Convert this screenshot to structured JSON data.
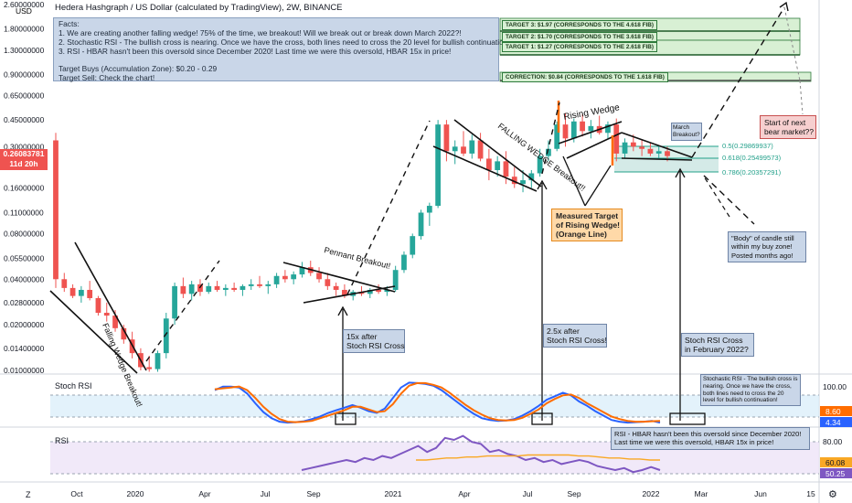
{
  "header": {
    "title": "Hedera Hashgraph / US Dollar (calculated by TradingView), 2W, BINANCE",
    "currency": "USD"
  },
  "facts": {
    "heading": "Facts:",
    "line1": "1. We are creating another falling wedge! 75% of the time, we breakout! Will we break out or break down March 2022?!",
    "line2": "2. Stochastic RSI - The bullish cross is nearing. Once we have the cross, both lines need to cross the 20 level for bullish continuation!",
    "line3": "3. RSI - HBAR hasn't been this oversold since December 2020! Last time we were this oversold, HBAR 15x in price!",
    "buys": "Target Buys (Accumulation Zone): $0.20 - 0.29",
    "sell": "Target Sell: Check the chart!"
  },
  "price_tag": {
    "price": "0.26083781",
    "countdown": "11d 20h",
    "color": "#ef5350"
  },
  "targets": {
    "t3": "TARGET 3: $1.97 (CORRESPONDS TO THE 4.618 FIB)",
    "t2": "TARGET 2: $1.70 (CORRESPONDS TO THE 3.618 FIB)",
    "t1": "TARGET 1: $1.27 (CORRESPONDS TO THE 2.618 FIB)",
    "correction": "CORRECTION: $0.84 (CORRESPONDS TO THE 1.618 FIB)"
  },
  "fib_levels": {
    "f05": "0.5(0.29869937)",
    "f0618": "0.618(0.25499573)",
    "f0786": "0.786(0.20357291)"
  },
  "annotations": {
    "falling_wedge_left": "Falling Wedge Breakout!",
    "pennant": "Pennant Breakout!",
    "falling_wedge_mid": "FALLING WEDGE Breakout!!",
    "rising_wedge": "Rising Wedge",
    "measured_target_1": "Measured Target",
    "measured_target_2": "of Rising Wedge!",
    "measured_target_3": "(Orange Line)",
    "march_1": "March",
    "march_2": "Breakout?",
    "bear_1": "Start of next",
    "bear_2": "bear market??",
    "body_1": "\"Body\" of candle still",
    "body_2": "within my buy zone!",
    "body_3": "Posted months ago!",
    "x15_1": "15x after",
    "x15_2": "Stoch RSI Cross",
    "x25_1": "2.5x after",
    "x25_2": "Stoch RSI Cross!",
    "feb_1": "Stoch RSI Cross",
    "feb_2": "in February 2022?",
    "stoch_note_1": "Stochastic RSI - The bullish cross is",
    "stoch_note_2": "nearing. Once we have the cross,",
    "stoch_note_3": "both lines need to cross the 20",
    "stoch_note_4": "level for bullish continuation!",
    "rsi_note_1": "RSI - HBAR hasn't been this oversold since December 2020!",
    "rsi_note_2": "Last time we were this oversold, HBAR 15x in price!"
  },
  "panels": {
    "stoch_label": "Stoch RSI",
    "stoch_top": "100.00",
    "stoch_v1": "8.60",
    "stoch_v2": "4.34",
    "rsi_label": "RSI",
    "rsi_top": "80.00",
    "rsi_v1": "60.08",
    "rsi_v2": "50.25"
  },
  "colors": {
    "up": "#26a69a",
    "down": "#ef5350",
    "stoch_k": "#2962ff",
    "stoch_d": "#ff6d00",
    "rsi": "#7e57c2",
    "rsi_ma": "#f9a825",
    "fib": "#22a08a",
    "orange_line": "#ff6d00"
  },
  "chart_data": {
    "type": "candlestick",
    "scale": "log",
    "y_ticks": [
      "2.60000000",
      "1.80000000",
      "1.30000000",
      "0.90000000",
      "0.65000000",
      "0.45000000",
      "0.30000000",
      "0.16000000",
      "0.11000000",
      "0.08000000",
      "0.05500000",
      "0.04000000",
      "0.02800000",
      "0.02000000",
      "0.01400000",
      "0.01000000"
    ],
    "x_ticks": [
      "Oct",
      "2020",
      "Apr",
      "Jul",
      "Sep",
      "2021",
      "Apr",
      "Jul",
      "Sep",
      "2022",
      "Mar",
      "Jun",
      "15"
    ],
    "candles": [
      {
        "o": 0.33,
        "h": 0.37,
        "l": 0.035,
        "c": 0.04
      },
      {
        "o": 0.04,
        "h": 0.044,
        "l": 0.033,
        "c": 0.035
      },
      {
        "o": 0.035,
        "h": 0.037,
        "l": 0.03,
        "c": 0.031
      },
      {
        "o": 0.031,
        "h": 0.036,
        "l": 0.028,
        "c": 0.034
      },
      {
        "o": 0.034,
        "h": 0.039,
        "l": 0.029,
        "c": 0.03
      },
      {
        "o": 0.03,
        "h": 0.031,
        "l": 0.023,
        "c": 0.024
      },
      {
        "o": 0.024,
        "h": 0.028,
        "l": 0.021,
        "c": 0.023
      },
      {
        "o": 0.023,
        "h": 0.025,
        "l": 0.018,
        "c": 0.019
      },
      {
        "o": 0.019,
        "h": 0.02,
        "l": 0.015,
        "c": 0.016
      },
      {
        "o": 0.016,
        "h": 0.018,
        "l": 0.012,
        "c": 0.013
      },
      {
        "o": 0.013,
        "h": 0.014,
        "l": 0.01,
        "c": 0.0105
      },
      {
        "o": 0.0105,
        "h": 0.0125,
        "l": 0.0098,
        "c": 0.0102
      },
      {
        "o": 0.0102,
        "h": 0.0135,
        "l": 0.0098,
        "c": 0.013
      },
      {
        "o": 0.013,
        "h": 0.024,
        "l": 0.012,
        "c": 0.022
      },
      {
        "o": 0.022,
        "h": 0.038,
        "l": 0.02,
        "c": 0.036
      },
      {
        "o": 0.036,
        "h": 0.041,
        "l": 0.03,
        "c": 0.032
      },
      {
        "o": 0.032,
        "h": 0.039,
        "l": 0.029,
        "c": 0.037
      },
      {
        "o": 0.037,
        "h": 0.04,
        "l": 0.031,
        "c": 0.033
      },
      {
        "o": 0.033,
        "h": 0.038,
        "l": 0.032,
        "c": 0.036
      },
      {
        "o": 0.036,
        "h": 0.039,
        "l": 0.033,
        "c": 0.034
      },
      {
        "o": 0.034,
        "h": 0.037,
        "l": 0.031,
        "c": 0.035
      },
      {
        "o": 0.035,
        "h": 0.038,
        "l": 0.033,
        "c": 0.034
      },
      {
        "o": 0.034,
        "h": 0.037,
        "l": 0.031,
        "c": 0.036
      },
      {
        "o": 0.036,
        "h": 0.04,
        "l": 0.034,
        "c": 0.037
      },
      {
        "o": 0.037,
        "h": 0.042,
        "l": 0.035,
        "c": 0.036
      },
      {
        "o": 0.036,
        "h": 0.039,
        "l": 0.032,
        "c": 0.037
      },
      {
        "o": 0.037,
        "h": 0.044,
        "l": 0.035,
        "c": 0.042
      },
      {
        "o": 0.042,
        "h": 0.046,
        "l": 0.038,
        "c": 0.04
      },
      {
        "o": 0.04,
        "h": 0.045,
        "l": 0.037,
        "c": 0.043
      },
      {
        "o": 0.043,
        "h": 0.052,
        "l": 0.041,
        "c": 0.048
      },
      {
        "o": 0.048,
        "h": 0.053,
        "l": 0.042,
        "c": 0.044
      },
      {
        "o": 0.044,
        "h": 0.048,
        "l": 0.038,
        "c": 0.04
      },
      {
        "o": 0.04,
        "h": 0.044,
        "l": 0.034,
        "c": 0.036
      },
      {
        "o": 0.036,
        "h": 0.038,
        "l": 0.031,
        "c": 0.034
      },
      {
        "o": 0.034,
        "h": 0.037,
        "l": 0.03,
        "c": 0.031
      },
      {
        "o": 0.031,
        "h": 0.034,
        "l": 0.029,
        "c": 0.033
      },
      {
        "o": 0.033,
        "h": 0.036,
        "l": 0.031,
        "c": 0.032
      },
      {
        "o": 0.032,
        "h": 0.035,
        "l": 0.03,
        "c": 0.034
      },
      {
        "o": 0.034,
        "h": 0.037,
        "l": 0.032,
        "c": 0.033
      },
      {
        "o": 0.033,
        "h": 0.036,
        "l": 0.031,
        "c": 0.034
      },
      {
        "o": 0.034,
        "h": 0.049,
        "l": 0.033,
        "c": 0.046
      },
      {
        "o": 0.046,
        "h": 0.061,
        "l": 0.044,
        "c": 0.058
      },
      {
        "o": 0.058,
        "h": 0.08,
        "l": 0.055,
        "c": 0.077
      },
      {
        "o": 0.077,
        "h": 0.115,
        "l": 0.073,
        "c": 0.11
      },
      {
        "o": 0.11,
        "h": 0.128,
        "l": 0.09,
        "c": 0.122
      },
      {
        "o": 0.122,
        "h": 0.45,
        "l": 0.118,
        "c": 0.42
      },
      {
        "o": 0.42,
        "h": 0.45,
        "l": 0.24,
        "c": 0.28
      },
      {
        "o": 0.28,
        "h": 0.33,
        "l": 0.23,
        "c": 0.3
      },
      {
        "o": 0.3,
        "h": 0.38,
        "l": 0.26,
        "c": 0.27
      },
      {
        "o": 0.27,
        "h": 0.36,
        "l": 0.25,
        "c": 0.33
      },
      {
        "o": 0.33,
        "h": 0.37,
        "l": 0.24,
        "c": 0.25
      },
      {
        "o": 0.25,
        "h": 0.29,
        "l": 0.18,
        "c": 0.21
      },
      {
        "o": 0.21,
        "h": 0.26,
        "l": 0.19,
        "c": 0.24
      },
      {
        "o": 0.24,
        "h": 0.28,
        "l": 0.17,
        "c": 0.19
      },
      {
        "o": 0.19,
        "h": 0.22,
        "l": 0.16,
        "c": 0.17
      },
      {
        "o": 0.17,
        "h": 0.21,
        "l": 0.15,
        "c": 0.18
      },
      {
        "o": 0.18,
        "h": 0.21,
        "l": 0.16,
        "c": 0.2
      },
      {
        "o": 0.2,
        "h": 0.29,
        "l": 0.19,
        "c": 0.26
      },
      {
        "o": 0.26,
        "h": 0.33,
        "l": 0.24,
        "c": 0.29
      },
      {
        "o": 0.29,
        "h": 0.44,
        "l": 0.28,
        "c": 0.42
      },
      {
        "o": 0.42,
        "h": 0.5,
        "l": 0.3,
        "c": 0.34
      },
      {
        "o": 0.34,
        "h": 0.46,
        "l": 0.32,
        "c": 0.44
      },
      {
        "o": 0.44,
        "h": 0.49,
        "l": 0.35,
        "c": 0.38
      },
      {
        "o": 0.38,
        "h": 0.45,
        "l": 0.34,
        "c": 0.41
      },
      {
        "o": 0.41,
        "h": 0.48,
        "l": 0.36,
        "c": 0.37
      },
      {
        "o": 0.37,
        "h": 0.44,
        "l": 0.34,
        "c": 0.42
      },
      {
        "o": 0.42,
        "h": 0.46,
        "l": 0.24,
        "c": 0.27
      },
      {
        "o": 0.27,
        "h": 0.34,
        "l": 0.25,
        "c": 0.32
      },
      {
        "o": 0.32,
        "h": 0.36,
        "l": 0.28,
        "c": 0.3
      },
      {
        "o": 0.3,
        "h": 0.33,
        "l": 0.26,
        "c": 0.29
      },
      {
        "o": 0.29,
        "h": 0.32,
        "l": 0.26,
        "c": 0.27
      },
      {
        "o": 0.27,
        "h": 0.3,
        "l": 0.25,
        "c": 0.28
      },
      {
        "o": 0.28,
        "h": 0.3,
        "l": 0.24,
        "c": 0.26
      }
    ],
    "stoch_k": [
      78,
      86,
      86,
      84,
      70,
      48,
      28,
      14,
      6,
      4,
      5,
      7,
      12,
      18,
      26,
      32,
      38,
      44,
      38,
      30,
      26,
      36,
      60,
      84,
      95,
      94,
      92,
      88,
      78,
      64,
      50,
      36,
      24,
      14,
      10,
      8,
      9,
      12,
      20,
      30,
      42,
      56,
      64,
      72,
      66,
      52,
      42,
      30,
      20,
      10,
      6,
      4,
      5,
      6,
      8,
      4
    ],
    "stoch_d": [
      80,
      82,
      84,
      86,
      78,
      60,
      40,
      24,
      12,
      6,
      5,
      6,
      8,
      14,
      20,
      26,
      32,
      40,
      40,
      34,
      28,
      30,
      46,
      70,
      88,
      94,
      94,
      90,
      84,
      72,
      58,
      44,
      32,
      22,
      14,
      10,
      9,
      10,
      15,
      24,
      34,
      48,
      58,
      66,
      68,
      60,
      48,
      38,
      28,
      18,
      12,
      8,
      6,
      6,
      7,
      8
    ],
    "rsi": [
      50,
      52,
      54,
      56,
      58,
      60,
      58,
      62,
      60,
      64,
      62,
      66,
      70,
      74,
      68,
      72,
      82,
      80,
      84,
      78,
      76,
      68,
      70,
      66,
      64,
      60,
      62,
      58,
      60,
      56,
      58,
      60,
      58,
      54,
      52,
      50,
      52,
      48,
      50,
      53,
      50
    ],
    "rsi_ma": [
      60,
      60,
      61,
      62,
      62,
      63,
      63,
      64,
      64,
      64,
      64,
      65,
      65,
      65,
      65,
      65,
      64,
      64,
      63,
      62,
      62,
      61,
      61,
      60,
      60
    ]
  }
}
